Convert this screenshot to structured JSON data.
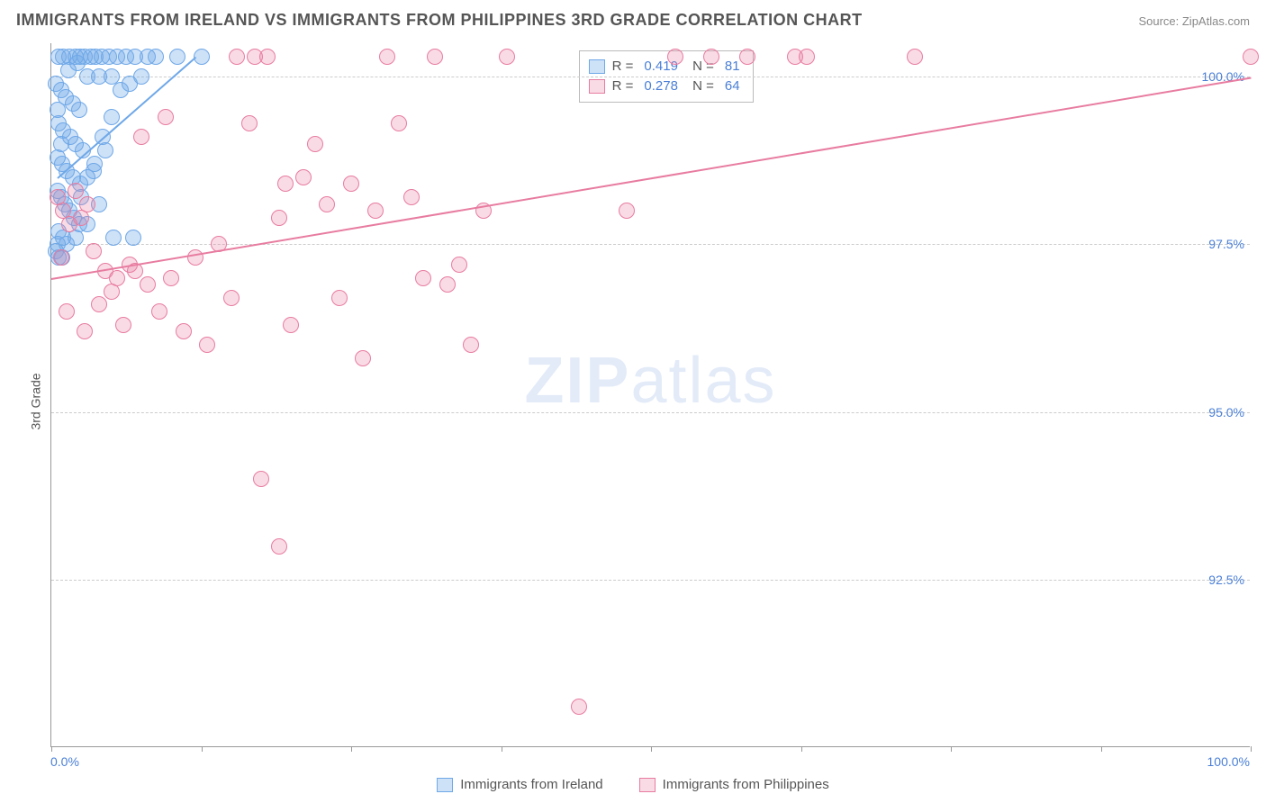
{
  "header": {
    "title": "IMMIGRANTS FROM IRELAND VS IMMIGRANTS FROM PHILIPPINES 3RD GRADE CORRELATION CHART",
    "source": "Source: ZipAtlas.com"
  },
  "ylabel": "3rd Grade",
  "watermark_bold": "ZIP",
  "watermark_light": "atlas",
  "chart": {
    "type": "scatter",
    "background_color": "#ffffff",
    "grid_color": "#cccccc",
    "axis_color": "#999999",
    "label_color": "#4a7fd6",
    "text_color": "#555555",
    "xlim": [
      0,
      100
    ],
    "ylim": [
      90,
      100.5
    ],
    "y_gridlines": [
      92.5,
      95.0,
      97.5,
      100.0
    ],
    "y_tick_labels": [
      "92.5%",
      "95.0%",
      "97.5%",
      "100.0%"
    ],
    "x_ticks": [
      0,
      12.5,
      25,
      37.5,
      50,
      62.5,
      75,
      87.5,
      100
    ],
    "x_axis_left_label": "0.0%",
    "x_axis_right_label": "100.0%",
    "marker_radius": 9,
    "marker_stroke_width": 1.2,
    "series": [
      {
        "name": "Immigrants from Ireland",
        "color": "#6fa8e8",
        "fill": "rgba(111,168,232,0.35)",
        "R": "0.419",
        "N": "81",
        "trend": {
          "x1": 0.5,
          "y1": 98.5,
          "x2": 12,
          "y2": 100.3,
          "width": 2
        },
        "points": [
          [
            0.6,
            100.3
          ],
          [
            1.0,
            100.3
          ],
          [
            1.5,
            100.3
          ],
          [
            2.0,
            100.3
          ],
          [
            2.4,
            100.3
          ],
          [
            2.8,
            100.3
          ],
          [
            3.3,
            100.3
          ],
          [
            3.7,
            100.3
          ],
          [
            4.2,
            100.3
          ],
          [
            4.8,
            100.3
          ],
          [
            5.5,
            100.3
          ],
          [
            6.2,
            100.3
          ],
          [
            7.0,
            100.3
          ],
          [
            8.0,
            100.3
          ],
          [
            10.5,
            100.3
          ],
          [
            12.5,
            100.3
          ],
          [
            0.4,
            99.9
          ],
          [
            0.8,
            99.8
          ],
          [
            1.2,
            99.7
          ],
          [
            1.8,
            99.6
          ],
          [
            2.3,
            99.5
          ],
          [
            0.6,
            99.3
          ],
          [
            1.0,
            99.2
          ],
          [
            1.6,
            99.1
          ],
          [
            2.0,
            99.0
          ],
          [
            2.6,
            98.9
          ],
          [
            0.5,
            98.8
          ],
          [
            0.9,
            98.7
          ],
          [
            1.3,
            98.6
          ],
          [
            1.8,
            98.5
          ],
          [
            2.4,
            98.4
          ],
          [
            3.0,
            98.5
          ],
          [
            3.6,
            98.7
          ],
          [
            4.3,
            99.1
          ],
          [
            5.0,
            99.4
          ],
          [
            0.5,
            98.3
          ],
          [
            0.8,
            98.2
          ],
          [
            1.1,
            98.1
          ],
          [
            1.5,
            98.0
          ],
          [
            1.9,
            97.9
          ],
          [
            2.3,
            97.8
          ],
          [
            0.6,
            97.7
          ],
          [
            1.0,
            97.6
          ],
          [
            0.5,
            97.5
          ],
          [
            1.3,
            97.5
          ],
          [
            2.0,
            97.6
          ],
          [
            3.0,
            97.8
          ],
          [
            4.0,
            98.1
          ],
          [
            0.4,
            97.4
          ],
          [
            0.9,
            97.3
          ],
          [
            0.6,
            97.3
          ],
          [
            3.0,
            100.0
          ],
          [
            4.0,
            100.0
          ],
          [
            5.0,
            100.0
          ],
          [
            5.8,
            99.8
          ],
          [
            6.5,
            99.9
          ],
          [
            7.5,
            100.0
          ],
          [
            2.5,
            98.2
          ],
          [
            3.5,
            98.6
          ],
          [
            4.5,
            98.9
          ],
          [
            0.5,
            99.5
          ],
          [
            0.8,
            99.0
          ],
          [
            5.2,
            97.6
          ],
          [
            6.8,
            97.6
          ],
          [
            2.2,
            100.2
          ],
          [
            1.4,
            100.1
          ],
          [
            8.7,
            100.3
          ]
        ]
      },
      {
        "name": "Immigrants from Philippines",
        "color": "#e87ca0",
        "fill": "rgba(232,124,160,0.28)",
        "R": "0.278",
        "N": "64",
        "trend": {
          "x1": 0,
          "y1": 97.0,
          "x2": 100,
          "y2": 100.0,
          "width": 2
        },
        "points": [
          [
            0.5,
            98.2
          ],
          [
            1.0,
            98.0
          ],
          [
            1.5,
            97.8
          ],
          [
            2.0,
            98.3
          ],
          [
            2.5,
            97.9
          ],
          [
            3.0,
            98.1
          ],
          [
            3.5,
            97.4
          ],
          [
            4.0,
            96.6
          ],
          [
            4.5,
            97.1
          ],
          [
            5.0,
            96.8
          ],
          [
            5.5,
            97.0
          ],
          [
            6.0,
            96.3
          ],
          [
            6.5,
            97.2
          ],
          [
            7.0,
            97.1
          ],
          [
            8.0,
            96.9
          ],
          [
            9.0,
            96.5
          ],
          [
            10.0,
            97.0
          ],
          [
            11.0,
            96.2
          ],
          [
            12.0,
            97.3
          ],
          [
            13.0,
            96.0
          ],
          [
            14.0,
            97.5
          ],
          [
            15.0,
            96.7
          ],
          [
            16.5,
            99.3
          ],
          [
            17.0,
            100.3
          ],
          [
            18.0,
            100.3
          ],
          [
            19.0,
            97.9
          ],
          [
            19.5,
            98.4
          ],
          [
            20.0,
            96.3
          ],
          [
            21.0,
            98.5
          ],
          [
            22.0,
            99.0
          ],
          [
            23.0,
            98.1
          ],
          [
            24.0,
            96.7
          ],
          [
            25.0,
            98.4
          ],
          [
            26.0,
            95.8
          ],
          [
            27.0,
            98.0
          ],
          [
            28.0,
            100.3
          ],
          [
            29.0,
            99.3
          ],
          [
            30.0,
            98.2
          ],
          [
            31.0,
            97.0
          ],
          [
            32.0,
            100.3
          ],
          [
            33.0,
            96.9
          ],
          [
            34.0,
            97.2
          ],
          [
            35.0,
            96.0
          ],
          [
            19.0,
            93.0
          ],
          [
            17.5,
            94.0
          ],
          [
            36.0,
            98.0
          ],
          [
            38.0,
            100.3
          ],
          [
            44.0,
            90.6
          ],
          [
            48.0,
            98.0
          ],
          [
            52.0,
            100.3
          ],
          [
            55.0,
            100.3
          ],
          [
            58.0,
            100.3
          ],
          [
            62.0,
            100.3
          ],
          [
            63.0,
            100.3
          ],
          [
            72.0,
            100.3
          ],
          [
            15.5,
            100.3
          ],
          [
            9.5,
            99.4
          ],
          [
            7.5,
            99.1
          ],
          [
            0.8,
            97.3
          ],
          [
            1.3,
            96.5
          ],
          [
            2.8,
            96.2
          ],
          [
            100.0,
            100.3
          ]
        ]
      }
    ]
  },
  "bottom_legend": [
    {
      "label": "Immigrants from Ireland",
      "color": "#6fa8e8",
      "fill": "rgba(111,168,232,0.35)"
    },
    {
      "label": "Immigrants from Philippines",
      "color": "#e87ca0",
      "fill": "rgba(232,124,160,0.28)"
    }
  ]
}
